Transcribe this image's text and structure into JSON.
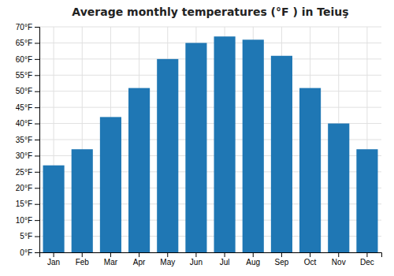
{
  "chart_data": {
    "type": "bar",
    "title": "Average monthly temperatures (°F ) in Teiuş",
    "categories": [
      "Jan",
      "Feb",
      "Mar",
      "Apr",
      "May",
      "Jun",
      "Jul",
      "Aug",
      "Sep",
      "Oct",
      "Nov",
      "Dec"
    ],
    "values": [
      27,
      32,
      42,
      51,
      60,
      65,
      67,
      66,
      61,
      51,
      40,
      32
    ],
    "ylim": [
      0,
      70
    ],
    "yticks": [
      {
        "value": 0,
        "label": "0°F"
      },
      {
        "value": 5,
        "label": "5°F"
      },
      {
        "value": 10,
        "label": "10°F"
      },
      {
        "value": 15,
        "label": "15°F"
      },
      {
        "value": 20,
        "label": "20°F"
      },
      {
        "value": 25,
        "label": "25°F"
      },
      {
        "value": 30,
        "label": "30°F"
      },
      {
        "value": 35,
        "label": "35°F"
      },
      {
        "value": 40,
        "label": "40°F"
      },
      {
        "value": 45,
        "label": "45°F"
      },
      {
        "value": 50,
        "label": "50°F"
      },
      {
        "value": 55,
        "label": "55°F"
      },
      {
        "value": 60,
        "label": "60°F"
      },
      {
        "value": 65,
        "label": "65°F"
      },
      {
        "value": 70,
        "label": "70°F"
      }
    ],
    "grid": true
  }
}
